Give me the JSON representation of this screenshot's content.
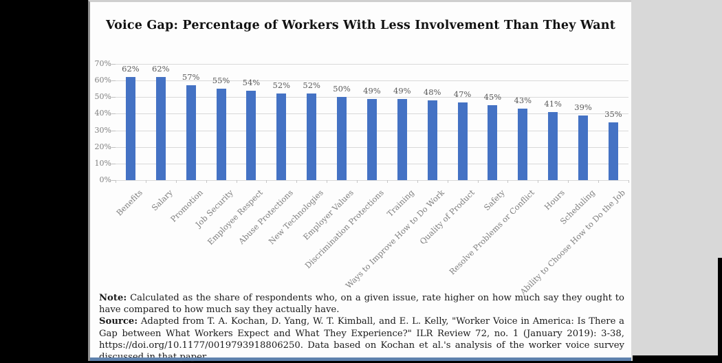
{
  "chart_data": {
    "type": "bar",
    "title": "Voice Gap: Percentage of Workers With Less Involvement Than They Want",
    "categories": [
      "Benefits",
      "Salary",
      "Promotion",
      "Job Security",
      "Employee Respect",
      "Abuse Protections",
      "New Technologies",
      "Employer Values",
      "Discrimination Protections",
      "Training",
      "Ways to Improve How to Do Work",
      "Quality of Product",
      "Safety",
      "Resolve Problems or Conflict",
      "Hours",
      "Scheduling",
      "Ability to Choose How to Do the Job"
    ],
    "values": [
      62,
      62,
      57,
      55,
      54,
      52,
      52,
      50,
      49,
      49,
      48,
      47,
      45,
      43,
      41,
      39,
      35
    ],
    "data_labels": [
      "62%",
      "62%",
      "57%",
      "55%",
      "54%",
      "52%",
      "52%",
      "50%",
      "49%",
      "49%",
      "48%",
      "47%",
      "45%",
      "43%",
      "41%",
      "39%",
      "35%"
    ],
    "yticks": [
      "70%",
      "60%",
      "50%",
      "40%",
      "30%",
      "20%",
      "10%",
      "0%"
    ],
    "ylim": [
      0,
      70
    ],
    "grid": true,
    "legend": "none",
    "xlabel": "",
    "ylabel": "",
    "bar_color": "#4472C4",
    "value_label_color": "#595959",
    "axis_label_color": "#7f7f7f"
  },
  "note": {
    "label": "Note:",
    "text": " Calculated as the share of respondents who, on a given issue, rate higher on how much say they ought to have compared to how much say they actually have."
  },
  "source": {
    "label": "Source:",
    "text": " Adapted from T. A. Kochan, D. Yang, W. T. Kimball, and E. L. Kelly, \"Worker Voice in America: Is There a Gap between What Workers Expect and What They Experience?\" ILR Review 72, no. 1 (January 2019): 3-38, https://doi.org/10.1177/0019793918806250. Data based on Kochan et al.'s analysis of the worker voice survey discussed in that paper."
  }
}
